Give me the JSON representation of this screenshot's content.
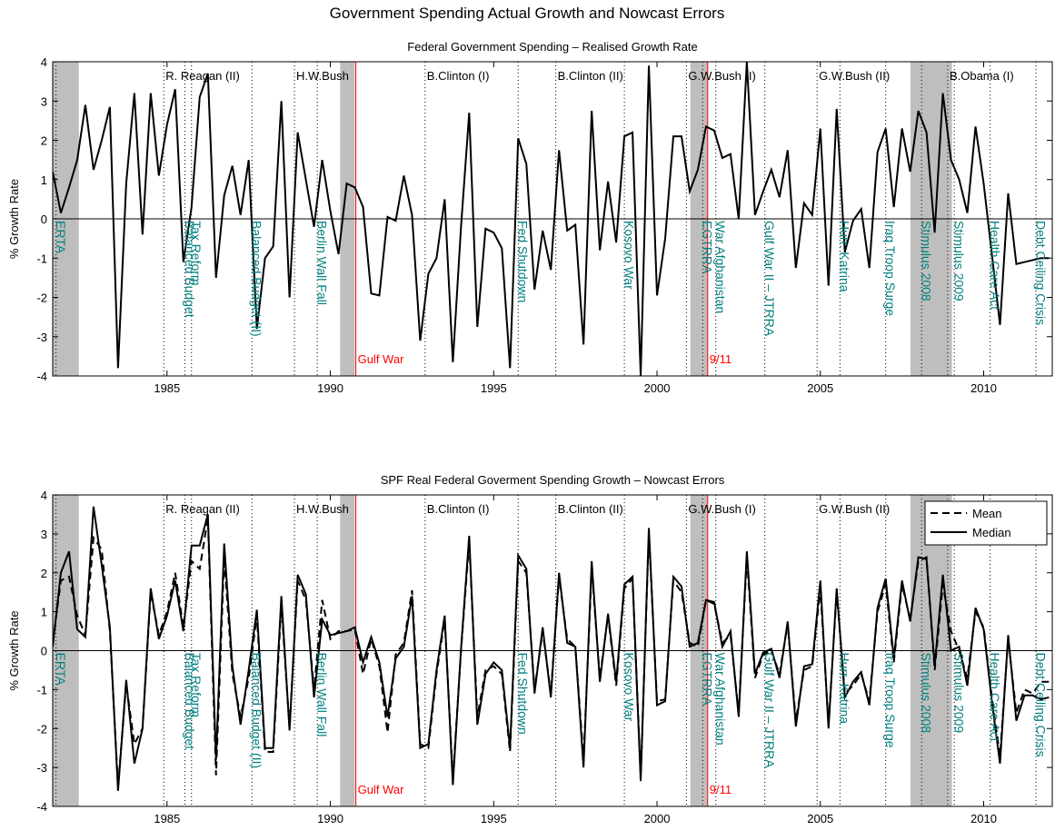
{
  "title": "Government Spending Actual Growth and Nowcast Errors",
  "chart_data": [
    {
      "type": "line",
      "title": "Federal Government Spending – Realised Growth Rate",
      "y_label": "% Growth Rate",
      "x": [
        1981.5,
        1981.75,
        1982,
        1982.25,
        1982.5,
        1982.75,
        1983,
        1983.25,
        1983.5,
        1983.75,
        1984,
        1984.25,
        1984.5,
        1984.75,
        1985,
        1985.25,
        1985.5,
        1985.75,
        1986,
        1986.25,
        1986.5,
        1986.75,
        1987,
        1987.25,
        1987.5,
        1987.75,
        1988,
        1988.25,
        1988.5,
        1988.75,
        1989,
        1989.25,
        1989.5,
        1989.75,
        1990,
        1990.25,
        1990.5,
        1990.75,
        1991,
        1991.25,
        1991.5,
        1991.75,
        1992,
        1992.25,
        1992.5,
        1992.75,
        1993,
        1993.25,
        1993.5,
        1993.75,
        1994,
        1994.25,
        1994.5,
        1994.75,
        1995,
        1995.25,
        1995.5,
        1995.75,
        1996,
        1996.25,
        1996.5,
        1996.75,
        1997,
        1997.25,
        1997.5,
        1997.75,
        1998,
        1998.25,
        1998.5,
        1998.75,
        1999,
        1999.25,
        1999.5,
        1999.75,
        2000,
        2000.25,
        2000.5,
        2000.75,
        2001,
        2001.25,
        2001.5,
        2001.75,
        2002,
        2002.25,
        2002.5,
        2002.75,
        2003,
        2003.25,
        2003.5,
        2003.75,
        2004,
        2004.25,
        2004.5,
        2004.75,
        2005,
        2005.25,
        2005.5,
        2005.75,
        2006,
        2006.25,
        2006.5,
        2006.75,
        2007,
        2007.25,
        2007.5,
        2007.75,
        2008,
        2008.25,
        2008.5,
        2008.75,
        2009,
        2009.25,
        2009.5,
        2009.75,
        2010,
        2010.25,
        2010.5,
        2010.75,
        2011,
        2011.25,
        2011.5,
        2011.75,
        2012
      ],
      "series": [
        {
          "color": "#000000",
          "dash": "solid",
          "values": [
            1.2,
            0.15,
            0.8,
            1.5,
            2.9,
            1.25,
            2.0,
            2.85,
            -3.8,
            0.9,
            3.2,
            -0.4,
            3.2,
            1.1,
            2.4,
            3.3,
            -1.1,
            0.3,
            3.1,
            3.7,
            -1.5,
            0.6,
            1.35,
            0.1,
            1.5,
            -2.8,
            -1.0,
            -0.7,
            3.0,
            -2.0,
            2.2,
            1.0,
            -0.2,
            1.5,
            0.2,
            -0.9,
            0.9,
            0.8,
            0.3,
            -1.9,
            -1.95,
            0.05,
            -0.05,
            1.1,
            0.1,
            -3.1,
            -1.4,
            -1.0,
            0.5,
            -3.65,
            -0.2,
            2.7,
            -2.75,
            -0.25,
            -0.35,
            -0.75,
            -3.8,
            2.05,
            1.4,
            -1.8,
            -0.3,
            -1.3,
            1.75,
            -0.3,
            -0.15,
            -3.2,
            2.75,
            -0.8,
            0.95,
            -0.6,
            2.1,
            2.2,
            -4.0,
            3.9,
            -1.95,
            -0.5,
            2.1,
            2.1,
            0.7,
            1.25,
            2.35,
            2.25,
            1.55,
            1.65,
            0.0,
            4.0,
            0.1,
            0.7,
            1.25,
            0.55,
            1.75,
            -1.25,
            0.4,
            0.1,
            2.3,
            -1.7,
            2.8,
            -0.85,
            -0.05,
            0.25,
            -1.25,
            1.7,
            2.3,
            0.3,
            2.3,
            1.2,
            2.75,
            2.2,
            -0.35,
            3.2,
            1.5,
            1.0,
            0.15,
            2.35,
            0.9,
            -0.9,
            -2.7,
            0.65,
            -1.15,
            -1.1,
            -1.05,
            -1.0,
            -1.0
          ]
        }
      ],
      "xlim": [
        1981.5,
        2012.1
      ],
      "xticks": [
        1985,
        1990,
        1995,
        2000,
        2005,
        2010
      ],
      "ylim": [
        -4,
        4
      ],
      "yticks": [
        -4,
        -3,
        -2,
        -1,
        0,
        1,
        2,
        3,
        4
      ],
      "zero_line": true,
      "shaded_periods": [
        [
          1981.5,
          1982.3
        ],
        [
          1990.3,
          1990.75
        ],
        [
          2001.02,
          2001.55
        ],
        [
          2007.76,
          2009.03
        ]
      ],
      "presidents": [
        {
          "label": "R. Reagan (II)",
          "x": 1984.9
        },
        {
          "label": "H.W.Bush",
          "x": 1988.9
        },
        {
          "label": "B.Clinton (I)",
          "x": 1992.9
        },
        {
          "label": "B.Clinton (II)",
          "x": 1996.9
        },
        {
          "label": "G.W.Bush (I)",
          "x": 2000.9
        },
        {
          "label": "G.W.Bush (II)",
          "x": 2004.9
        },
        {
          "label": "B.Obama (I)",
          "x": 2008.9
        }
      ],
      "events": [
        {
          "label": "ERTA",
          "x": 1981.6,
          "color": "#008080",
          "line": "dotted"
        },
        {
          "label": "Balanced Budget",
          "x": 1985.55,
          "color": "#008080",
          "line": "dotted"
        },
        {
          "label": "Tax Reform",
          "x": 1985.75,
          "color": "#008080",
          "line": "dotted"
        },
        {
          "label": "Balanced Budget (II)",
          "x": 1987.6,
          "color": "#008080",
          "line": "dotted"
        },
        {
          "label": "Berlin Wall Fall",
          "x": 1989.6,
          "color": "#008080",
          "line": "dotted"
        },
        {
          "label": "Gulf War",
          "x": 1990.78,
          "color": "#ff0000",
          "line": "solid"
        },
        {
          "label": "Fed Shutdown",
          "x": 1995.75,
          "color": "#008080",
          "line": "dotted"
        },
        {
          "label": "Kosovo War",
          "x": 1999.0,
          "color": "#008080",
          "line": "dotted"
        },
        {
          "label": "EGTRRA",
          "x": 2001.4,
          "color": "#008080",
          "line": "dotted"
        },
        {
          "label": "9/11",
          "x": 2001.55,
          "color": "#ff0000",
          "line": "solid"
        },
        {
          "label": "War Afghanistan",
          "x": 2001.8,
          "color": "#008080",
          "line": "dotted"
        },
        {
          "label": "Gulf War II – JTRRA",
          "x": 2003.3,
          "color": "#008080",
          "line": "dotted"
        },
        {
          "label": "Hurr. Katrina",
          "x": 2005.6,
          "color": "#008080",
          "line": "dotted"
        },
        {
          "label": "Iraq Troop Surge",
          "x": 2007.0,
          "color": "#008080",
          "line": "dotted"
        },
        {
          "label": "Stimulus 2008",
          "x": 2008.1,
          "color": "#008080",
          "line": "dotted"
        },
        {
          "label": "Stimulus 2009",
          "x": 2009.1,
          "color": "#008080",
          "line": "dotted"
        },
        {
          "label": "Health Care Act",
          "x": 2010.2,
          "color": "#008080",
          "line": "dotted"
        },
        {
          "label": "Debt Ceiling Crisis",
          "x": 2011.6,
          "color": "#008080",
          "line": "dotted"
        }
      ]
    },
    {
      "type": "line",
      "title": "SPF Real Federal Goverment Spending Growth – Nowcast Errors",
      "y_label": "% Growth Rate",
      "x": [
        1981.5,
        1981.75,
        1982,
        1982.25,
        1982.5,
        1982.75,
        1983,
        1983.25,
        1983.5,
        1983.75,
        1984,
        1984.25,
        1984.5,
        1984.75,
        1985,
        1985.25,
        1985.5,
        1985.75,
        1986,
        1986.25,
        1986.5,
        1986.75,
        1987,
        1987.25,
        1987.5,
        1987.75,
        1988,
        1988.25,
        1988.5,
        1988.75,
        1989,
        1989.25,
        1989.5,
        1989.75,
        1990,
        1990.25,
        1990.5,
        1990.75,
        1991,
        1991.25,
        1991.5,
        1991.75,
        1992,
        1992.25,
        1992.5,
        1992.75,
        1993,
        1993.25,
        1993.5,
        1993.75,
        1994,
        1994.25,
        1994.5,
        1994.75,
        1995,
        1995.25,
        1995.5,
        1995.75,
        1996,
        1996.25,
        1996.5,
        1996.75,
        1997,
        1997.25,
        1997.5,
        1997.75,
        1998,
        1998.25,
        1998.5,
        1998.75,
        1999,
        1999.25,
        1999.5,
        1999.75,
        2000,
        2000.25,
        2000.5,
        2000.75,
        2001,
        2001.25,
        2001.5,
        2001.75,
        2002,
        2002.25,
        2002.5,
        2002.75,
        2003,
        2003.25,
        2003.5,
        2003.75,
        2004,
        2004.25,
        2004.5,
        2004.75,
        2005,
        2005.25,
        2005.5,
        2005.75,
        2006,
        2006.25,
        2006.5,
        2006.75,
        2007,
        2007.25,
        2007.5,
        2007.75,
        2008,
        2008.25,
        2008.5,
        2008.75,
        2009,
        2009.25,
        2009.5,
        2009.75,
        2010,
        2010.25,
        2010.5,
        2010.75,
        2011,
        2011.25,
        2011.5,
        2011.75,
        2012
      ],
      "series": [
        {
          "name": "Mean",
          "color": "#000000",
          "dash": "dashed",
          "values": [
            0.2,
            1.8,
            1.9,
            0.9,
            0.4,
            2.9,
            2.6,
            0.5,
            -3.5,
            -0.85,
            -2.4,
            -2.0,
            1.5,
            0.4,
            1.0,
            2.0,
            0.6,
            2.3,
            2.1,
            3.4,
            -3.2,
            2.4,
            -0.6,
            -1.7,
            -0.7,
            0.9,
            -2.6,
            -2.6,
            1.2,
            -2.0,
            1.8,
            1.3,
            -1.0,
            1.3,
            0.3,
            0.5,
            0.5,
            0.55,
            -0.6,
            0.3,
            -0.4,
            -2.1,
            -0.1,
            0.2,
            1.55,
            -2.4,
            -2.5,
            -0.6,
            0.8,
            -3.3,
            0.0,
            2.8,
            -1.7,
            -0.5,
            -0.4,
            -0.6,
            -2.6,
            2.3,
            2.0,
            -1.0,
            0.5,
            -1.1,
            1.9,
            0.3,
            0.1,
            -2.8,
            2.1,
            -0.7,
            0.9,
            -0.9,
            1.6,
            1.85,
            -3.2,
            3.0,
            -1.3,
            -1.25,
            1.8,
            1.5,
            0.2,
            0.1,
            1.3,
            1.2,
            0.2,
            0.4,
            -1.6,
            2.4,
            -0.7,
            -0.1,
            0.0,
            -0.6,
            0.7,
            -1.8,
            -0.5,
            -0.4,
            1.6,
            -1.9,
            1.5,
            -1.1,
            -0.9,
            -0.6,
            -1.3,
            1.0,
            1.7,
            -0.3,
            1.7,
            0.8,
            2.3,
            2.4,
            -0.5,
            1.7,
            0.5,
            0.0,
            -0.7,
            1.0,
            0.6,
            -1.2,
            -2.7,
            0.3,
            -1.6,
            -1.0,
            -1.1,
            -0.8,
            -0.8
          ]
        },
        {
          "name": "Median",
          "color": "#000000",
          "dash": "solid",
          "values": [
            0.1,
            2.0,
            2.55,
            0.55,
            0.35,
            3.7,
            2.2,
            0.6,
            -3.6,
            -0.75,
            -2.9,
            -2.0,
            1.6,
            0.3,
            0.9,
            1.8,
            0.5,
            2.7,
            2.7,
            3.5,
            -2.8,
            2.75,
            -0.4,
            -1.9,
            -0.5,
            1.05,
            -2.5,
            -2.5,
            1.4,
            -2.05,
            1.95,
            1.45,
            -1.2,
            0.8,
            0.4,
            0.45,
            0.5,
            0.6,
            -0.3,
            0.35,
            -0.3,
            -1.7,
            -0.2,
            0.1,
            1.4,
            -2.5,
            -2.4,
            -0.5,
            0.9,
            -3.45,
            0.05,
            2.95,
            -1.9,
            -0.6,
            -0.3,
            -0.5,
            -2.5,
            2.45,
            2.1,
            -1.1,
            0.6,
            -1.2,
            2.0,
            0.2,
            0.1,
            -3.0,
            2.3,
            -0.8,
            0.95,
            -0.8,
            1.7,
            1.9,
            -3.35,
            3.15,
            -1.4,
            -1.3,
            1.9,
            1.65,
            0.1,
            0.2,
            1.3,
            1.25,
            0.1,
            0.5,
            -1.7,
            2.55,
            -0.6,
            -0.05,
            0.05,
            -0.7,
            0.75,
            -1.95,
            -0.4,
            -0.35,
            1.8,
            -2.0,
            1.6,
            -1.2,
            -0.8,
            -0.55,
            -1.4,
            1.1,
            1.85,
            -0.2,
            1.8,
            0.75,
            2.4,
            2.35,
            -0.4,
            1.95,
            0.0,
            0.1,
            -0.9,
            1.1,
            0.55,
            -1.3,
            -2.9,
            0.4,
            -1.8,
            -1.15,
            -1.15,
            -1.25,
            -1.2
          ]
        }
      ],
      "xlim": [
        1981.5,
        2012.1
      ],
      "xticks": [
        1985,
        1990,
        1995,
        2000,
        2005,
        2010
      ],
      "ylim": [
        -4,
        4
      ],
      "yticks": [
        -4,
        -3,
        -2,
        -1,
        0,
        1,
        2,
        3,
        4
      ],
      "zero_line": true,
      "legend": "northeast",
      "shaded_periods": [
        [
          1981.5,
          1982.3
        ],
        [
          1990.3,
          1990.75
        ],
        [
          2001.02,
          2001.55
        ],
        [
          2007.76,
          2009.03
        ]
      ],
      "presidents": [
        {
          "label": "R. Reagan (II)",
          "x": 1984.9
        },
        {
          "label": "H.W.Bush",
          "x": 1988.9
        },
        {
          "label": "B.Clinton (I)",
          "x": 1992.9
        },
        {
          "label": "B.Clinton (II)",
          "x": 1996.9
        },
        {
          "label": "G.W.Bush (I)",
          "x": 2000.9
        },
        {
          "label": "G.W.Bush (II)",
          "x": 2004.9
        },
        {
          "label": "B.Obama (I)",
          "x": 2008.9
        }
      ],
      "events": [
        {
          "label": "ERTA",
          "x": 1981.6,
          "color": "#008080",
          "line": "dotted"
        },
        {
          "label": "Balanced Budget",
          "x": 1985.55,
          "color": "#008080",
          "line": "dotted"
        },
        {
          "label": "Tax Reform",
          "x": 1985.75,
          "color": "#008080",
          "line": "dotted"
        },
        {
          "label": "Balanced Budget (II)",
          "x": 1987.6,
          "color": "#008080",
          "line": "dotted"
        },
        {
          "label": "Berlin Wall Fall",
          "x": 1989.6,
          "color": "#008080",
          "line": "dotted"
        },
        {
          "label": "Gulf War",
          "x": 1990.78,
          "color": "#ff0000",
          "line": "solid"
        },
        {
          "label": "Fed Shutdown",
          "x": 1995.75,
          "color": "#008080",
          "line": "dotted"
        },
        {
          "label": "Kosovo War",
          "x": 1999.0,
          "color": "#008080",
          "line": "dotted"
        },
        {
          "label": "EGTRRA",
          "x": 2001.4,
          "color": "#008080",
          "line": "dotted"
        },
        {
          "label": "9/11",
          "x": 2001.55,
          "color": "#ff0000",
          "line": "solid"
        },
        {
          "label": "War Afghanistan",
          "x": 2001.8,
          "color": "#008080",
          "line": "dotted"
        },
        {
          "label": "Gulf War II – JTRRA",
          "x": 2003.3,
          "color": "#008080",
          "line": "dotted"
        },
        {
          "label": "Hurr. Katrina",
          "x": 2005.6,
          "color": "#008080",
          "line": "dotted"
        },
        {
          "label": "Iraq Troop Surge",
          "x": 2007.0,
          "color": "#008080",
          "line": "dotted"
        },
        {
          "label": "Stimulus 2008",
          "x": 2008.1,
          "color": "#008080",
          "line": "dotted"
        },
        {
          "label": "Stimulus 2009",
          "x": 2009.1,
          "color": "#008080",
          "line": "dotted"
        },
        {
          "label": "Health Care Act",
          "x": 2010.2,
          "color": "#008080",
          "line": "dotted"
        },
        {
          "label": "Debt Ceiling Crisis",
          "x": 2011.6,
          "color": "#008080",
          "line": "dotted"
        }
      ]
    }
  ]
}
